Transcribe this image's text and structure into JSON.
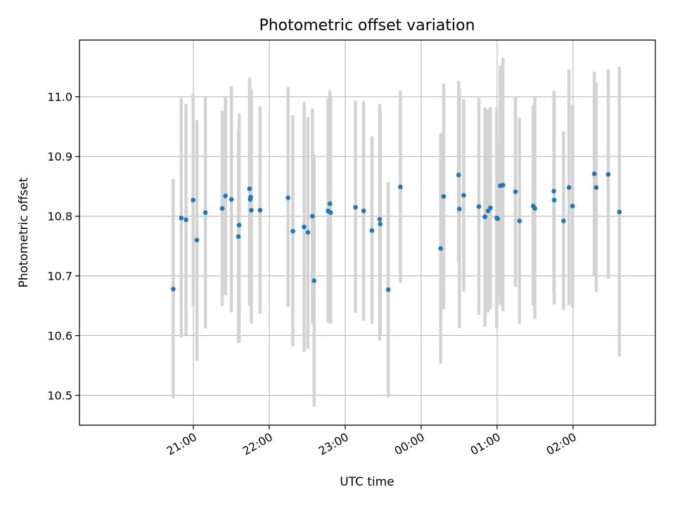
{
  "chart_data": {
    "type": "scatter",
    "title": "Photometric offset variation",
    "xlabel": "UTC time",
    "ylabel": "Photometric offset",
    "x_unit": "minutes relative to 00:00 UTC",
    "xlim": [
      -270,
      185
    ],
    "ylim": [
      10.45,
      11.095
    ],
    "grid": true,
    "legend": "none",
    "colors": {
      "point": "#1f77b4",
      "errorbar": "#d3d3d3",
      "grid": "#b0b0b0"
    },
    "x_ticks": [
      {
        "value": -180,
        "label": "21:00"
      },
      {
        "value": -120,
        "label": "22:00"
      },
      {
        "value": -60,
        "label": "23:00"
      },
      {
        "value": 0,
        "label": "00:00"
      },
      {
        "value": 60,
        "label": "01:00"
      },
      {
        "value": 120,
        "label": "02:00"
      }
    ],
    "y_ticks": [
      {
        "value": 10.5,
        "label": "10.5"
      },
      {
        "value": 10.6,
        "label": "10.6"
      },
      {
        "value": 10.7,
        "label": "10.7"
      },
      {
        "value": 10.8,
        "label": "10.8"
      },
      {
        "value": 10.9,
        "label": "10.9"
      },
      {
        "value": 11.0,
        "label": "11.0"
      }
    ],
    "points": [
      {
        "x": -195.9,
        "y": 10.678,
        "lo": 10.495,
        "hi": 10.862
      },
      {
        "x": -189.6,
        "y": 10.797,
        "lo": 10.597,
        "hi": 10.998
      },
      {
        "x": -185.8,
        "y": 10.794,
        "lo": 10.6,
        "hi": 10.988
      },
      {
        "x": -180.2,
        "y": 10.827,
        "lo": 10.649,
        "hi": 11.005
      },
      {
        "x": -177.2,
        "y": 10.76,
        "lo": 10.558,
        "hi": 10.961
      },
      {
        "x": -170.5,
        "y": 10.806,
        "lo": 10.612,
        "hi": 10.999
      },
      {
        "x": -157.2,
        "y": 10.813,
        "lo": 10.65,
        "hi": 10.977
      },
      {
        "x": -154.6,
        "y": 10.834,
        "lo": 10.668,
        "hi": 10.999
      },
      {
        "x": -149.9,
        "y": 10.828,
        "lo": 10.639,
        "hi": 11.018
      },
      {
        "x": -143.8,
        "y": 10.785,
        "lo": 10.588,
        "hi": 10.972
      },
      {
        "x": -144.4,
        "y": 10.766,
        "lo": 10.588,
        "hi": 10.945
      },
      {
        "x": -135.6,
        "y": 10.846,
        "lo": 10.65,
        "hi": 11.032
      },
      {
        "x": -135.0,
        "y": 10.828,
        "lo": 10.649,
        "hi": 11.015
      },
      {
        "x": -134.7,
        "y": 10.832,
        "lo": 10.65,
        "hi": 11.012
      },
      {
        "x": -134.2,
        "y": 10.81,
        "lo": 10.62,
        "hi": 11.012
      },
      {
        "x": -127.3,
        "y": 10.81,
        "lo": 10.637,
        "hi": 10.984
      },
      {
        "x": -105.2,
        "y": 10.831,
        "lo": 10.648,
        "hi": 11.016
      },
      {
        "x": -101.4,
        "y": 10.775,
        "lo": 10.582,
        "hi": 10.969
      },
      {
        "x": -92.5,
        "y": 10.782,
        "lo": 10.573,
        "hi": 10.991
      },
      {
        "x": -89.5,
        "y": 10.773,
        "lo": 10.578,
        "hi": 10.966
      },
      {
        "x": -85.9,
        "y": 10.8,
        "lo": 10.62,
        "hi": 10.98
      },
      {
        "x": -84.6,
        "y": 10.692,
        "lo": 10.481,
        "hi": 10.903
      },
      {
        "x": -73.6,
        "y": 10.809,
        "lo": 10.622,
        "hi": 10.997
      },
      {
        "x": -72.1,
        "y": 10.821,
        "lo": 10.62,
        "hi": 11.011
      },
      {
        "x": -71.6,
        "y": 10.806,
        "lo": 10.62,
        "hi": 11.003
      },
      {
        "x": -51.9,
        "y": 10.815,
        "lo": 10.638,
        "hi": 10.993
      },
      {
        "x": -45.5,
        "y": 10.809,
        "lo": 10.625,
        "hi": 10.993
      },
      {
        "x": -38.9,
        "y": 10.776,
        "lo": 10.62,
        "hi": 10.934
      },
      {
        "x": -32.8,
        "y": 10.795,
        "lo": 10.592,
        "hi": 10.988
      },
      {
        "x": -32.3,
        "y": 10.787,
        "lo": 10.6,
        "hi": 10.978
      },
      {
        "x": -26.0,
        "y": 10.677,
        "lo": 10.497,
        "hi": 10.857
      },
      {
        "x": -16.4,
        "y": 10.849,
        "lo": 10.688,
        "hi": 11.01
      },
      {
        "x": 15.4,
        "y": 10.746,
        "lo": 10.553,
        "hi": 10.939
      },
      {
        "x": 17.8,
        "y": 10.833,
        "lo": 10.644,
        "hi": 11.022
      },
      {
        "x": 29.6,
        "y": 10.869,
        "lo": 10.723,
        "hi": 11.027
      },
      {
        "x": 30.2,
        "y": 10.812,
        "lo": 10.613,
        "hi": 11.013
      },
      {
        "x": 33.6,
        "y": 10.835,
        "lo": 10.674,
        "hi": 10.996
      },
      {
        "x": 45.6,
        "y": 10.816,
        "lo": 10.635,
        "hi": 10.998
      },
      {
        "x": 50.4,
        "y": 10.799,
        "lo": 10.615,
        "hi": 10.982
      },
      {
        "x": 52.9,
        "y": 10.809,
        "lo": 10.639,
        "hi": 10.979
      },
      {
        "x": 54.7,
        "y": 10.814,
        "lo": 10.645,
        "hi": 10.983
      },
      {
        "x": 59.7,
        "y": 10.797,
        "lo": 10.612,
        "hi": 10.982
      },
      {
        "x": 60.4,
        "y": 10.796,
        "lo": 10.668,
        "hi": 10.926
      },
      {
        "x": 62.4,
        "y": 10.851,
        "lo": 10.651,
        "hi": 11.052
      },
      {
        "x": 64.6,
        "y": 10.852,
        "lo": 10.641,
        "hi": 11.065
      },
      {
        "x": 74.5,
        "y": 10.841,
        "lo": 10.682,
        "hi": 11.001
      },
      {
        "x": 77.7,
        "y": 10.792,
        "lo": 10.62,
        "hi": 10.965
      },
      {
        "x": 88.5,
        "y": 10.817,
        "lo": 10.65,
        "hi": 10.986
      },
      {
        "x": 89.8,
        "y": 10.813,
        "lo": 10.628,
        "hi": 10.999
      },
      {
        "x": 104.8,
        "y": 10.842,
        "lo": 10.674,
        "hi": 11.01
      },
      {
        "x": 105.1,
        "y": 10.827,
        "lo": 10.652,
        "hi": 11.003
      },
      {
        "x": 112.5,
        "y": 10.792,
        "lo": 10.643,
        "hi": 10.942
      },
      {
        "x": 116.8,
        "y": 10.848,
        "lo": 10.651,
        "hi": 11.046
      },
      {
        "x": 119.6,
        "y": 10.817,
        "lo": 10.647,
        "hi": 10.986
      },
      {
        "x": 136.8,
        "y": 10.871,
        "lo": 10.7,
        "hi": 11.042
      },
      {
        "x": 138.3,
        "y": 10.848,
        "lo": 10.673,
        "hi": 11.024
      },
      {
        "x": 147.8,
        "y": 10.87,
        "lo": 10.695,
        "hi": 11.046
      },
      {
        "x": 156.6,
        "y": 10.807,
        "lo": 10.565,
        "hi": 11.05
      }
    ]
  }
}
